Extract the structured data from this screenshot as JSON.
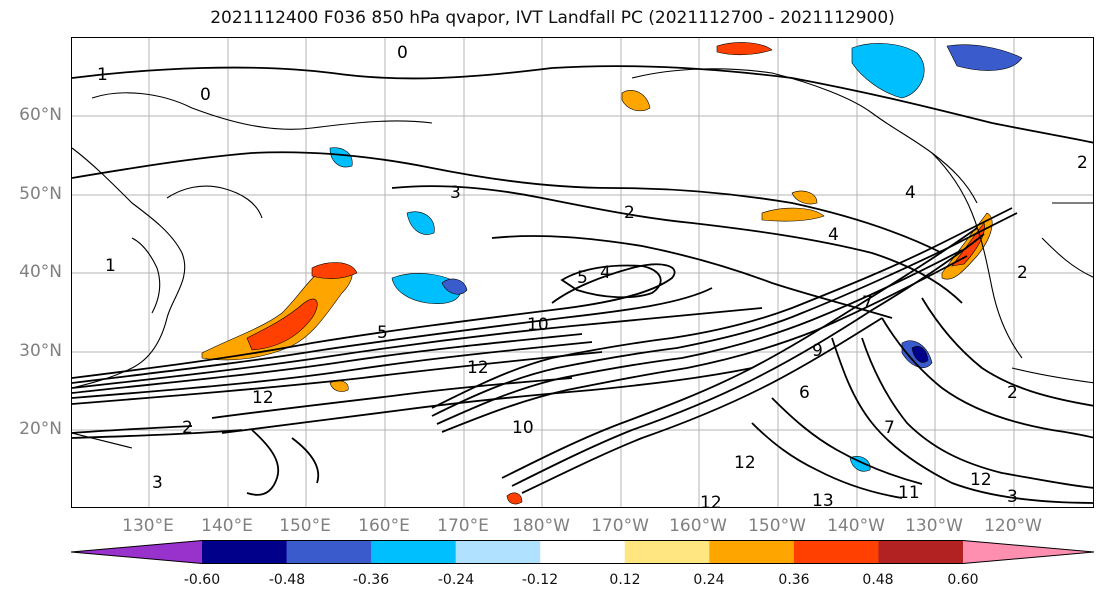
{
  "title": "2021112400 F036 850 hPa qvapor, IVT Landfall PC (2021112700 - 2021112900)",
  "latitude_labels": [
    "60°N",
    "50°N",
    "40°N",
    "30°N",
    "20°N"
  ],
  "longitude_labels": [
    "130°E",
    "140°E",
    "150°E",
    "160°E",
    "170°E",
    "180°W",
    "170°W",
    "160°W",
    "150°W",
    "140°W",
    "130°W",
    "120°W"
  ],
  "contour_labels": [
    {
      "text": "1"
    },
    {
      "text": "0"
    },
    {
      "text": "0"
    },
    {
      "text": "3"
    },
    {
      "text": "2"
    },
    {
      "text": "4"
    },
    {
      "text": "5"
    },
    {
      "text": "5"
    },
    {
      "text": "4"
    },
    {
      "text": "10"
    },
    {
      "text": "12"
    },
    {
      "text": "12"
    },
    {
      "text": "10"
    },
    {
      "text": "7"
    },
    {
      "text": "9"
    },
    {
      "text": "6"
    },
    {
      "text": "7"
    },
    {
      "text": "12"
    },
    {
      "text": "12"
    },
    {
      "text": "13"
    },
    {
      "text": "11"
    },
    {
      "text": "12"
    },
    {
      "text": "3"
    },
    {
      "text": "2"
    },
    {
      "text": "2"
    },
    {
      "text": "2"
    },
    {
      "text": "4"
    },
    {
      "text": "1"
    },
    {
      "text": "3"
    },
    {
      "text": "2"
    }
  ],
  "colorbar": {
    "colors": [
      "#9932CC",
      "#00008B",
      "#3A5BCC",
      "#00BFFF",
      "#B0E2FF",
      "#FFFFFF",
      "#FFE680",
      "#FFA500",
      "#FF4000",
      "#B22222",
      "#FF8FB0"
    ],
    "tick_labels": [
      "-0.60",
      "-0.48",
      "-0.36",
      "-0.24",
      "-0.12",
      "0.12",
      "0.24",
      "0.36",
      "0.48",
      "0.60"
    ]
  }
}
